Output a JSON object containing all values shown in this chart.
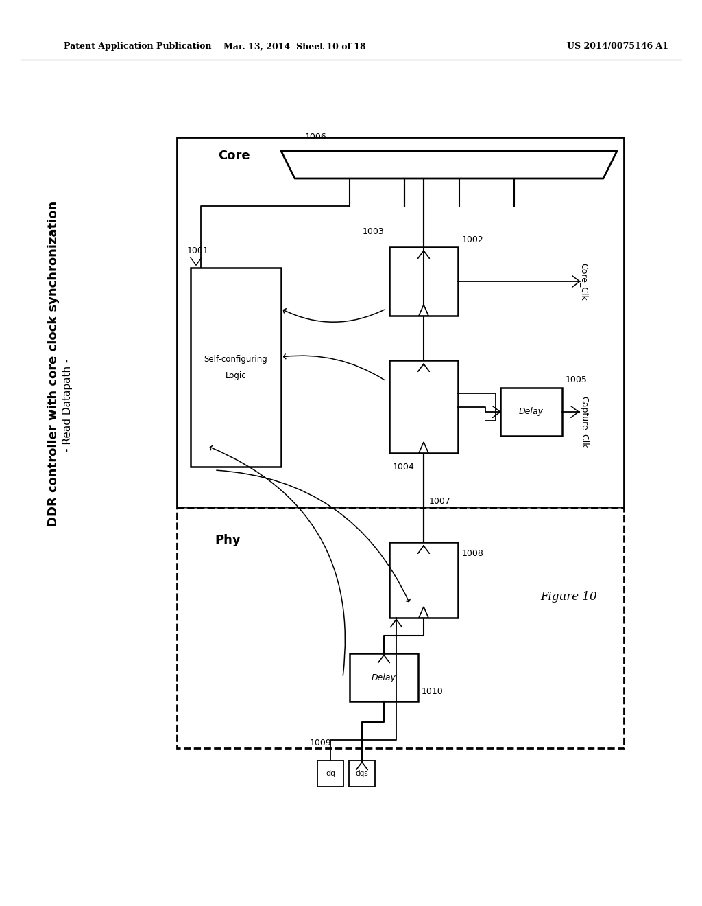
{
  "header_left": "Patent Application Publication",
  "header_mid": "Mar. 13, 2014  Sheet 10 of 18",
  "header_right": "US 2014/0075146 A1",
  "title_line1": "DDR controller with core clock synchronization",
  "title_line2": "- Read Datapath -",
  "figure_label": "Figure 10",
  "bg_color": "#ffffff",
  "core_label": "Core",
  "phy_label": "Phy",
  "scl_text1": "Self-configuring",
  "scl_text2": "Logic",
  "delay_text": "Delay",
  "dq_text": "dq",
  "dqs_text": "dqs",
  "lbl_1001": "1001",
  "lbl_1002": "1002",
  "lbl_1003": "1003",
  "lbl_1004": "1004",
  "lbl_1005": "1005",
  "lbl_1006": "1006",
  "lbl_1007": "1007",
  "lbl_1008": "1008",
  "lbl_1009": "1009",
  "lbl_1010": "1010",
  "lbl_core_clk": "Core_Clk",
  "lbl_capture_clk": "Capture_Clk"
}
